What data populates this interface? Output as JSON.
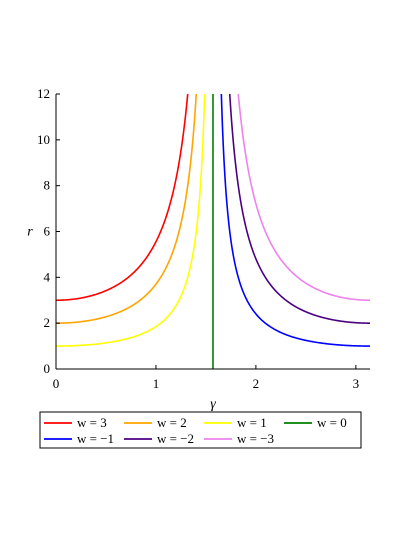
{
  "chart_data": {
    "type": "line",
    "title": "",
    "xlabel": "γ",
    "ylabel": "r",
    "xlim": [
      0,
      3.1416
    ],
    "ylim": [
      0,
      12
    ],
    "x_ticks": [
      0,
      1,
      2,
      3
    ],
    "y_ticks": [
      0,
      2,
      4,
      6,
      8,
      10,
      12
    ],
    "grid": false,
    "legend_placement": "bottom",
    "series": [
      {
        "name": "w = 3",
        "w": 3,
        "color": "#ff0000",
        "x_at_top": 1.32,
        "y_at_x0": 3
      },
      {
        "name": "w = 2",
        "w": 2,
        "color": "#ffa500",
        "x_at_top": 1.4,
        "y_at_x0": 2
      },
      {
        "name": "w = 1",
        "w": 1,
        "color": "#ffff00",
        "x_at_top": 1.49,
        "y_at_x0": 1
      },
      {
        "name": "w = 0",
        "w": 0,
        "color": "#008000",
        "x_at_top": 1.5708,
        "y_at_x0": 0
      },
      {
        "name": "w = −1",
        "w": -1,
        "color": "#0000ff",
        "x_at_top": 1.65,
        "y_at_xmax": 1
      },
      {
        "name": "w = −2",
        "w": -2,
        "color": "#4b0082",
        "x_at_top": 1.74,
        "y_at_xmax": 2
      },
      {
        "name": "w = −3",
        "w": -3,
        "color": "#ee82ee",
        "x_at_top": 1.82,
        "y_at_xmax": 3
      }
    ]
  }
}
